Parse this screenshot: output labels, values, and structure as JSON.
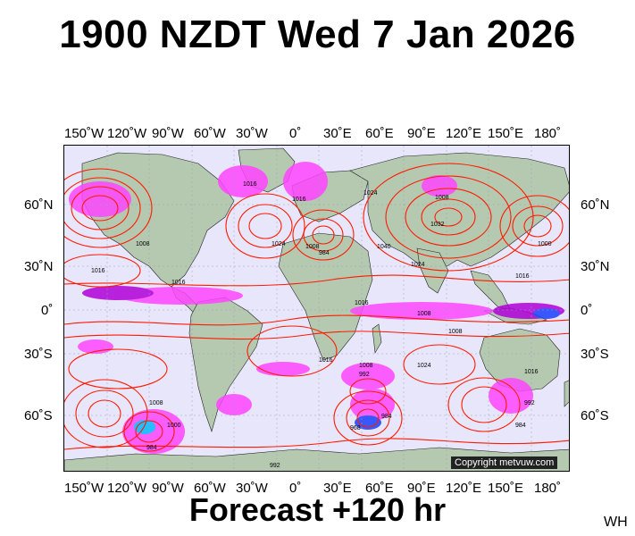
{
  "title": "1900 NZDT Wed 7 Jan 2026",
  "footer": "Forecast +120 hr",
  "region_code": "WH",
  "copyright": "Copyright metvuw.com",
  "lon_labels": [
    "150˚W",
    "120˚W",
    "90˚W",
    "60˚W",
    "30˚W",
    "0˚",
    "30˚E",
    "60˚E",
    "90˚E",
    "120˚E",
    "150˚E",
    "180˚"
  ],
  "lat_labels": [
    "60˚N",
    "30˚N",
    "0˚",
    "30˚S",
    "60˚S"
  ],
  "isobar_labels": [
    "1016",
    "1016",
    "1016",
    "1008",
    "1024",
    "1008",
    "984",
    "1016",
    "1024",
    "1008",
    "1040",
    "1032",
    "1016",
    "1000",
    "1024",
    "1008",
    "1016",
    "1008",
    "1024",
    "1016",
    "1008",
    "992",
    "984",
    "968",
    "984",
    "1000",
    "992",
    "1008",
    "1016",
    "984",
    "992"
  ],
  "colors": {
    "ocean": "#e8e6fb",
    "land": "#b5c9b0",
    "isobar": "#ff1a00",
    "rain_light": "#ff44ff",
    "rain_medium": "#b000d8",
    "rain_heavy": "#1a40ff",
    "rain_extreme": "#00b8ff"
  }
}
